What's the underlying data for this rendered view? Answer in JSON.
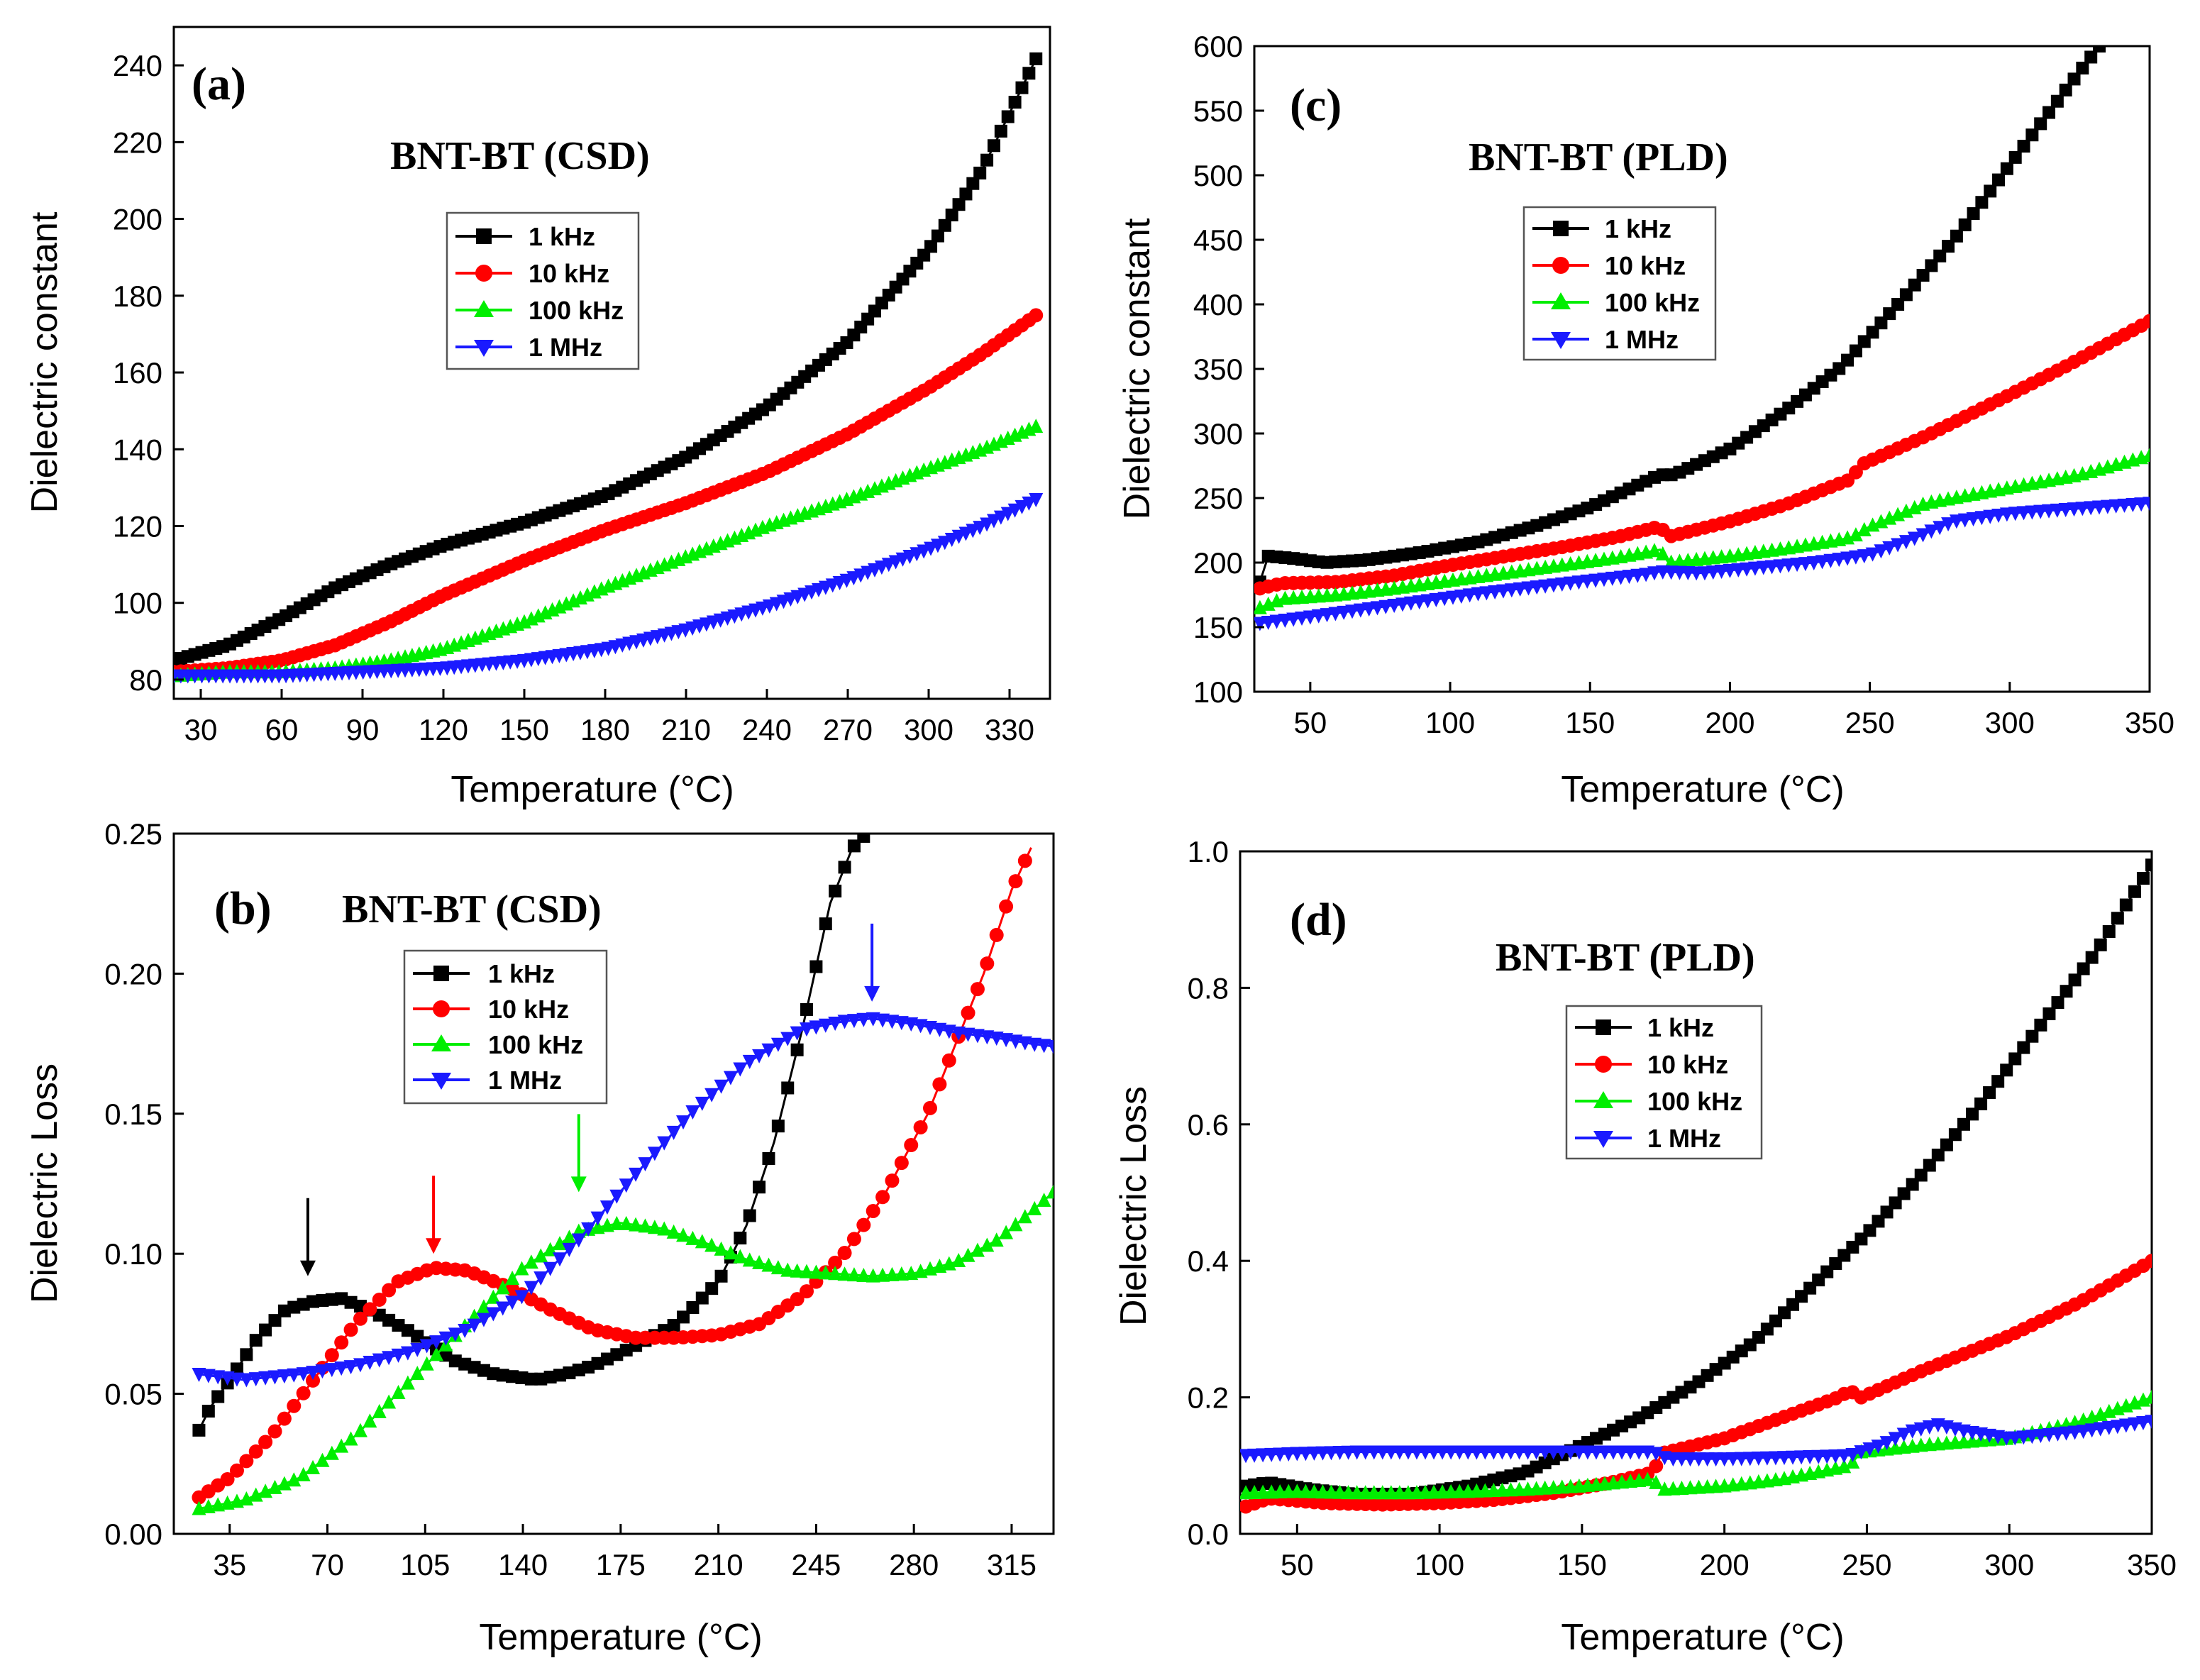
{
  "figure": {
    "colors": {
      "1 kHz": "#000000",
      "10 kHz": "#ff0000",
      "100 kHz": "#00ee00",
      "1 MHz": "#1a1aff"
    }
  },
  "chart_data": [
    {
      "panel": "(a)",
      "type": "line",
      "title": "BNT-BT (CSD)",
      "xlabel": "Temperature (°C)",
      "ylabel": "Dielectric constant",
      "xlim": [
        20,
        345
      ],
      "ylim": [
        75,
        250
      ],
      "xticks": [
        30,
        60,
        90,
        120,
        150,
        180,
        210,
        240,
        270,
        300,
        330
      ],
      "yticks": [
        80,
        100,
        120,
        140,
        160,
        180,
        200,
        220,
        240
      ],
      "legend": [
        "1 kHz",
        "10 kHz",
        "100 kHz",
        "1 MHz"
      ],
      "series": [
        {
          "name": "1 kHz",
          "marker": "square",
          "x": [
            20,
            40,
            60,
            80,
            100,
            120,
            150,
            180,
            210,
            240,
            270,
            300,
            320,
            340
          ],
          "y": [
            85,
            89,
            96,
            104,
            110,
            115,
            121,
            128,
            138,
            151,
            168,
            192,
            213,
            242
          ]
        },
        {
          "name": "10 kHz",
          "marker": "circle",
          "x": [
            20,
            40,
            60,
            80,
            100,
            120,
            150,
            180,
            210,
            240,
            270,
            300,
            320,
            340
          ],
          "y": [
            82,
            83,
            85,
            89,
            95,
            102,
            111,
            119,
            126,
            134,
            144,
            156,
            165,
            175
          ]
        },
        {
          "name": "100 kHz",
          "marker": "triangle-up",
          "x": [
            20,
            40,
            60,
            80,
            100,
            120,
            150,
            180,
            210,
            240,
            270,
            300,
            320,
            340
          ],
          "y": [
            81,
            82,
            82,
            83,
            85,
            88,
            95,
            104,
            112,
            120,
            127,
            135,
            140,
            146
          ]
        },
        {
          "name": "1 MHz",
          "marker": "triangle-down",
          "x": [
            20,
            60,
            90,
            120,
            150,
            180,
            210,
            240,
            270,
            300,
            320,
            340
          ],
          "y": [
            81,
            81,
            82,
            83,
            85,
            88,
            93,
            99,
            106,
            114,
            120,
            127
          ]
        }
      ]
    },
    {
      "panel": "(b)",
      "type": "line",
      "title": "BNT-BT (CSD)",
      "xlabel": "Temperature (°C)",
      "ylabel": "Dielectric Loss",
      "xlim": [
        15,
        330
      ],
      "ylim": [
        0,
        0.25
      ],
      "xticks": [
        35,
        70,
        105,
        140,
        175,
        210,
        245,
        280,
        315
      ],
      "yticks": [
        0.0,
        0.05,
        0.1,
        0.15,
        0.2,
        0.25
      ],
      "ytick_labels": [
        "0.00",
        "0.05",
        "0.10",
        "0.15",
        "0.20",
        "0.25"
      ],
      "legend": [
        "1 kHz",
        "10 kHz",
        "100 kHz",
        "1 MHz"
      ],
      "series": [
        {
          "name": "1 kHz",
          "marker": "square",
          "x": [
            24,
            28,
            35,
            45,
            55,
            65,
            75,
            85,
            100,
            115,
            130,
            145,
            155,
            165,
            180,
            195,
            210,
            220,
            230,
            240,
            250,
            258,
            263
          ],
          "y": [
            0.037,
            0.045,
            0.055,
            0.07,
            0.08,
            0.083,
            0.084,
            0.08,
            0.072,
            0.062,
            0.057,
            0.055,
            0.057,
            0.06,
            0.067,
            0.075,
            0.09,
            0.11,
            0.14,
            0.18,
            0.225,
            0.245,
            0.25
          ]
        },
        {
          "name": "10 kHz",
          "marker": "circle",
          "x": [
            24,
            35,
            50,
            65,
            80,
            95,
            108,
            120,
            135,
            150,
            165,
            180,
            195,
            210,
            225,
            240,
            255,
            270,
            285,
            295,
            305,
            315,
            322
          ],
          "y": [
            0.013,
            0.02,
            0.035,
            0.055,
            0.075,
            0.09,
            0.095,
            0.094,
            0.088,
            0.08,
            0.073,
            0.07,
            0.07,
            0.071,
            0.075,
            0.085,
            0.1,
            0.122,
            0.15,
            0.175,
            0.2,
            0.23,
            0.245
          ]
        },
        {
          "name": "100 kHz",
          "marker": "triangle-up",
          "x": [
            24,
            40,
            60,
            80,
            100,
            120,
            140,
            160,
            175,
            190,
            205,
            220,
            235,
            250,
            265,
            280,
            295,
            310,
            322,
            330
          ],
          "y": [
            0.009,
            0.012,
            0.02,
            0.035,
            0.055,
            0.075,
            0.095,
            0.108,
            0.111,
            0.109,
            0.104,
            0.098,
            0.094,
            0.093,
            0.092,
            0.093,
            0.097,
            0.105,
            0.115,
            0.122
          ]
        },
        {
          "name": "1 MHz",
          "marker": "triangle-down",
          "x": [
            24,
            40,
            60,
            80,
            100,
            120,
            140,
            160,
            180,
            200,
            220,
            240,
            255,
            265,
            280,
            295,
            310,
            322,
            330
          ],
          "y": [
            0.057,
            0.055,
            0.057,
            0.06,
            0.065,
            0.073,
            0.085,
            0.105,
            0.128,
            0.15,
            0.168,
            0.18,
            0.183,
            0.184,
            0.182,
            0.179,
            0.177,
            0.175,
            0.174
          ]
        }
      ],
      "annotations": [
        {
          "type": "arrow",
          "series": "1 kHz",
          "x": 63,
          "y_tip": 0.092,
          "color": "#000000"
        },
        {
          "type": "arrow",
          "series": "10 kHz",
          "x": 108,
          "y_tip": 0.1,
          "color": "#ff0000"
        },
        {
          "type": "arrow",
          "series": "100 kHz",
          "x": 160,
          "y_tip": 0.122,
          "color": "#00ee00"
        },
        {
          "type": "arrow",
          "series": "1 MHz",
          "x": 265,
          "y_tip": 0.19,
          "color": "#1a1aff"
        }
      ]
    },
    {
      "panel": "(c)",
      "type": "line",
      "title": "BNT-BT (PLD)",
      "xlabel": "Temperature (°C)",
      "ylabel": "Dielectric constant",
      "xlim": [
        30,
        350
      ],
      "ylim": [
        100,
        600
      ],
      "xticks": [
        50,
        100,
        150,
        200,
        250,
        300,
        350
      ],
      "yticks": [
        100,
        150,
        200,
        250,
        300,
        350,
        400,
        450,
        500,
        550,
        600
      ],
      "legend": [
        "1 kHz",
        "10 kHz",
        "100 kHz",
        "1 MHz"
      ],
      "series": [
        {
          "name": "1 kHz",
          "marker": "square",
          "x": [
            32,
            35,
            45,
            55,
            70,
            90,
            110,
            130,
            150,
            165,
            175,
            180,
            200,
            220,
            240,
            260,
            280,
            300,
            320,
            332
          ],
          "y": [
            185,
            205,
            203,
            200,
            202,
            208,
            216,
            228,
            243,
            258,
            268,
            268,
            288,
            318,
            352,
            400,
            450,
            508,
            566,
            600
          ]
        },
        {
          "name": "10 kHz",
          "marker": "circle",
          "x": [
            32,
            40,
            60,
            80,
            100,
            120,
            140,
            160,
            175,
            178,
            200,
            220,
            240,
            244,
            246,
            270,
            300,
            320,
            350
          ],
          "y": [
            180,
            184,
            185,
            190,
            198,
            205,
            212,
            220,
            228,
            220,
            232,
            245,
            262,
            265,
            275,
            298,
            330,
            352,
            387
          ]
        },
        {
          "name": "100 kHz",
          "marker": "triangle-up",
          "x": [
            32,
            40,
            60,
            80,
            100,
            120,
            140,
            160,
            175,
            178,
            200,
            220,
            240,
            244,
            250,
            270,
            300,
            325,
            350
          ],
          "y": [
            165,
            172,
            175,
            180,
            186,
            192,
            198,
            204,
            210,
            200,
            205,
            211,
            218,
            220,
            228,
            246,
            258,
            268,
            283
          ]
        },
        {
          "name": "1 MHz",
          "marker": "triangle-down",
          "x": [
            32,
            50,
            70,
            90,
            110,
            130,
            150,
            170,
            175,
            190,
            210,
            230,
            250,
            265,
            280,
            300,
            325,
            350
          ],
          "y": [
            153,
            158,
            164,
            170,
            176,
            181,
            186,
            191,
            193,
            192,
            196,
            200,
            206,
            218,
            232,
            238,
            242,
            246
          ]
        }
      ]
    },
    {
      "panel": "(d)",
      "type": "line",
      "title": "BNT-BT (PLD)",
      "xlabel": "Temperature (°C)",
      "ylabel": "Dielectric Loss",
      "xlim": [
        30,
        350
      ],
      "ylim": [
        0,
        1.0
      ],
      "xticks": [
        50,
        100,
        150,
        200,
        250,
        300,
        350
      ],
      "yticks": [
        0.0,
        0.2,
        0.4,
        0.6,
        0.8,
        1.0
      ],
      "ytick_labels": [
        "0.0",
        "0.2",
        "0.4",
        "0.6",
        "0.8",
        "1.0"
      ],
      "legend": [
        "1 kHz",
        "10 kHz",
        "100 kHz",
        "1 MHz"
      ],
      "series": [
        {
          "name": "1 kHz",
          "marker": "square",
          "x": [
            32,
            40,
            55,
            70,
            90,
            110,
            130,
            150,
            170,
            190,
            210,
            230,
            250,
            270,
            290,
            310,
            330,
            350
          ],
          "y": [
            0.07,
            0.075,
            0.065,
            0.058,
            0.058,
            0.07,
            0.09,
            0.13,
            0.17,
            0.22,
            0.28,
            0.36,
            0.44,
            0.53,
            0.63,
            0.74,
            0.85,
            0.98
          ]
        },
        {
          "name": "10 kHz",
          "marker": "circle",
          "x": [
            32,
            40,
            60,
            80,
            100,
            120,
            140,
            160,
            175,
            178,
            200,
            220,
            240,
            244,
            248,
            270,
            300,
            325,
            350
          ],
          "y": [
            0.04,
            0.052,
            0.045,
            0.043,
            0.045,
            0.05,
            0.06,
            0.075,
            0.09,
            0.118,
            0.14,
            0.17,
            0.2,
            0.21,
            0.2,
            0.24,
            0.29,
            0.34,
            0.4
          ]
        },
        {
          "name": "100 kHz",
          "marker": "triangle-up",
          "x": [
            32,
            50,
            70,
            90,
            110,
            130,
            150,
            175,
            178,
            200,
            220,
            244,
            248,
            270,
            300,
            325,
            350
          ],
          "y": [
            0.06,
            0.062,
            0.06,
            0.06,
            0.062,
            0.065,
            0.07,
            0.08,
            0.065,
            0.07,
            0.08,
            0.1,
            0.12,
            0.13,
            0.14,
            0.165,
            0.2
          ]
        },
        {
          "name": "1 MHz",
          "marker": "triangle-down",
          "x": [
            32,
            50,
            70,
            90,
            110,
            130,
            150,
            175,
            180,
            200,
            220,
            244,
            255,
            265,
            275,
            285,
            300,
            325,
            350
          ],
          "y": [
            0.115,
            0.118,
            0.12,
            0.12,
            0.12,
            0.12,
            0.12,
            0.12,
            0.11,
            0.11,
            0.112,
            0.115,
            0.13,
            0.15,
            0.16,
            0.15,
            0.14,
            0.15,
            0.165
          ]
        }
      ]
    }
  ]
}
